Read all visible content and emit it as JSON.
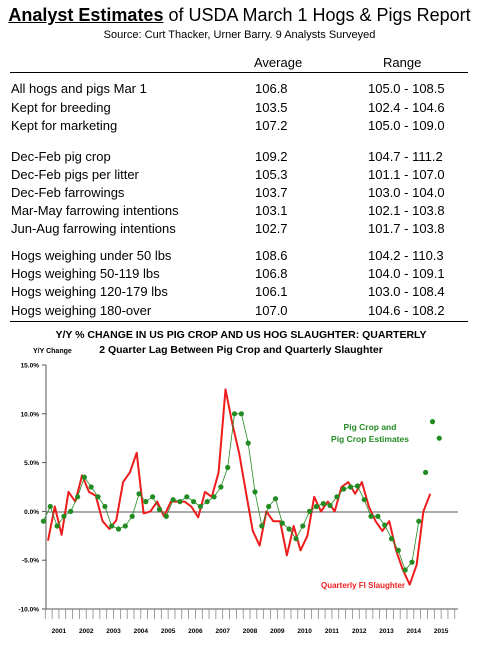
{
  "table": {
    "title_bold": "Analyst Estimates",
    "title_rest": " of USDA March 1 Hogs & Pigs Report",
    "source": "Source: Curt Thacker, Urner Barry.  9 Analysts Surveyed",
    "col_average": "Average",
    "col_range": "Range",
    "rows": [
      {
        "label": "All hogs and pigs Mar 1",
        "average": "106.8",
        "range": "105.0 - 108.5"
      },
      {
        "label": "Kept for breeding",
        "average": "103.5",
        "range": "102.4 - 104.6"
      },
      {
        "label": "Kept for marketing",
        "average": "107.2",
        "range": "105.0 - 109.0"
      },
      {
        "label": "Dec-Feb pig crop",
        "average": "109.2",
        "range": "104.7 - 111.2"
      },
      {
        "label": "Dec-Feb pigs per litter",
        "average": "105.3",
        "range": "101.1 - 107.0"
      },
      {
        "label": "Dec-Feb farrowings",
        "average": "103.7",
        "range": "103.0 - 104.0"
      },
      {
        "label": "Mar-May farrowing intentions",
        "average": "103.1",
        "range": "102.1 - 103.8"
      },
      {
        "label": "Jun-Aug farrowing intentions",
        "average": "102.7",
        "range": "101.7 - 103.8"
      },
      {
        "label": "Hogs weighing under 50 lbs",
        "average": "108.6",
        "range": "104.2 - 110.3"
      },
      {
        "label": "Hogs weighing 50-119 lbs",
        "average": "106.8",
        "range": "104.0 - 109.1"
      },
      {
        "label": "Hogs weighing 120-179 lbs",
        "average": "106.1",
        "range": "103.0 - 108.4"
      },
      {
        "label": "Hogs weighing 180-over",
        "average": "107.0",
        "range": "104.6 - 108.2"
      }
    ]
  },
  "chart_data": {
    "type": "line",
    "title": "Y/Y % CHANGE IN US PIG CROP AND US HOG SLAUGHTER: QUARTERLY",
    "subtitle": "2 Quarter Lag Between Pig Crop and Quarterly Slaughter",
    "ylabel": "Y/Y Change",
    "ylim": [
      -10.0,
      15.0
    ],
    "y_ticks": [
      "-10.0%",
      "-5.0%",
      "0.0%",
      "5.0%",
      "10.0%",
      "15.0%"
    ],
    "x_labels": [
      "2001",
      "2002",
      "2003",
      "2004",
      "2005",
      "2006",
      "2007",
      "2008",
      "2009",
      "2010",
      "2011",
      "2012",
      "2013",
      "2014",
      "2015"
    ],
    "x_start_year": 2001,
    "grid": false,
    "annotations": [
      "Pig Crop and",
      "Pig Crop Estimates",
      "Quarterly FI Slaughter"
    ],
    "colors": {
      "slaughter": "#ee1c1c",
      "pig_crop": "#228b22"
    },
    "series": [
      {
        "name": "Quarterly FI Slaughter",
        "kind": "line",
        "x": [
          2001.0,
          2001.25,
          2001.5,
          2001.75,
          2002.0,
          2002.25,
          2002.5,
          2002.75,
          2003.0,
          2003.25,
          2003.5,
          2003.75,
          2004.0,
          2004.25,
          2004.5,
          2004.75,
          2005.0,
          2005.25,
          2005.5,
          2005.75,
          2006.0,
          2006.25,
          2006.5,
          2006.75,
          2007.0,
          2007.25,
          2007.5,
          2007.75,
          2008.0,
          2008.25,
          2008.5,
          2008.75,
          2009.0,
          2009.25,
          2009.5,
          2009.75,
          2010.0,
          2010.25,
          2010.5,
          2010.75,
          2011.0,
          2011.25,
          2011.5,
          2011.75,
          2012.0,
          2012.25,
          2012.5,
          2012.75,
          2013.0,
          2013.25,
          2013.5,
          2013.75,
          2014.0,
          2014.25,
          2014.5,
          2014.75,
          2015.0
        ],
        "values": [
          -3.0,
          0.5,
          -2.4,
          2.0,
          1.0,
          3.7,
          2.0,
          1.6,
          -1.0,
          -1.8,
          -0.9,
          3.0,
          4.0,
          6.0,
          -0.2,
          0.0,
          1.0,
          -0.5,
          1.0,
          1.0,
          1.0,
          0.5,
          -0.6,
          2.0,
          1.5,
          4.0,
          12.5,
          9.0,
          6.0,
          2.0,
          -2.0,
          -3.5,
          0.0,
          -1.0,
          -1.0,
          -4.5,
          -1.5,
          -4.0,
          -2.5,
          1.5,
          0.0,
          1.0,
          0.0,
          2.5,
          3.0,
          1.8,
          3.0,
          0.5,
          -1.0,
          -2.0,
          -1.0,
          -4.0,
          -6.0,
          -7.5,
          -5.5,
          0.0,
          1.8
        ]
      },
      {
        "name": "Pig Crop and Pig Crop Estimates",
        "kind": "points",
        "x": [
          2000.833,
          2001.083,
          2001.333,
          2001.583,
          2001.833,
          2002.083,
          2002.333,
          2002.583,
          2002.833,
          2003.083,
          2003.333,
          2003.583,
          2003.833,
          2004.083,
          2004.333,
          2004.583,
          2004.833,
          2005.083,
          2005.333,
          2005.583,
          2005.833,
          2006.083,
          2006.333,
          2006.583,
          2006.833,
          2007.083,
          2007.333,
          2007.583,
          2007.833,
          2008.083,
          2008.333,
          2008.583,
          2008.833,
          2009.083,
          2009.333,
          2009.583,
          2009.833,
          2010.083,
          2010.333,
          2010.583,
          2010.833,
          2011.083,
          2011.333,
          2011.583,
          2011.833,
          2012.083,
          2012.333,
          2012.583,
          2012.833,
          2013.083,
          2013.333,
          2013.583,
          2013.833,
          2014.083,
          2014.333,
          2014.583,
          2014.833,
          2015.083,
          2015.333
        ],
        "values": [
          -1.0,
          0.5,
          -1.5,
          -0.5,
          0.0,
          1.5,
          3.5,
          2.5,
          1.5,
          0.5,
          -1.5,
          -1.8,
          -1.5,
          -0.5,
          1.8,
          1.0,
          1.5,
          0.2,
          -0.5,
          1.2,
          1.0,
          1.5,
          1.0,
          0.5,
          1.0,
          1.5,
          2.5,
          4.5,
          10.0,
          10.0,
          7.0,
          2.0,
          -1.5,
          0.5,
          1.3,
          -1.2,
          -1.8,
          -2.8,
          -1.5,
          0.0,
          0.5,
          0.8,
          0.6,
          1.5,
          2.3,
          2.5,
          2.6,
          1.2,
          -0.5,
          -0.5,
          -1.4,
          -2.8,
          -4.0,
          -6.0,
          -5.2,
          -1.0,
          4.0,
          9.2,
          7.5
        ]
      }
    ]
  }
}
